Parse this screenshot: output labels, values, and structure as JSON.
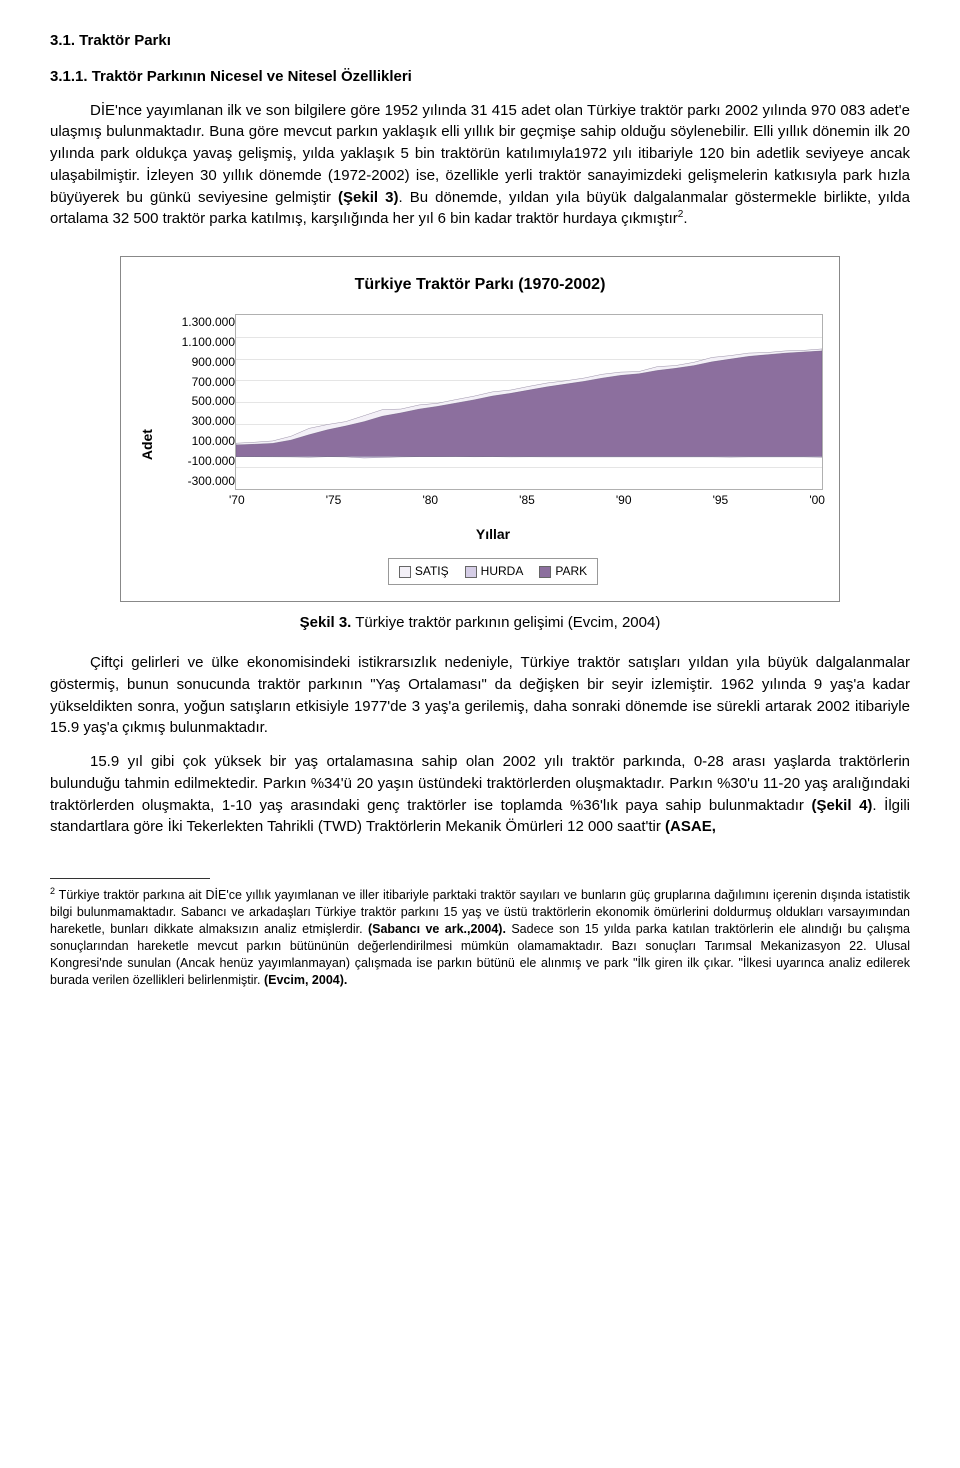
{
  "section_heading": "3.1. Traktör Parkı",
  "subsection_heading": "3.1.1. Traktör Parkının Nicesel ve Nitesel Özellikleri",
  "para1_a": "DİE'nce yayımlanan ilk ve son bilgilere göre 1952 yılında 31 415 adet olan Türkiye traktör parkı 2002 yılında 970 083 adet'e ulaşmış bulunmaktadır. Buna göre mevcut parkın yaklaşık elli yıllık bir geçmişe sahip olduğu söylenebilir. Elli yıllık dönemin ilk 20 yılında park oldukça yavaş gelişmiş, yılda yaklaşık 5 bin traktörün katılımıyla1972 yılı itibariyle 120 bin adetlik seviyeye ancak ulaşabilmiştir. İzleyen 30 yıllık dönemde (1972-2002) ise, özellikle yerli traktör sanayimizdeki gelişmelerin katkısıyla park hızla büyüyerek bu günkü seviyesine gelmiştir ",
  "para1_ref": "(Şekil 3)",
  "para1_b": ". Bu dönemde, yıldan yıla büyük dalgalanmalar göstermekle birlikte, yılda ortalama 32 500 traktör parka katılmış, karşılığında her yıl 6 bin kadar traktör hurdaya çıkmıştır",
  "para1_fnmark": "2",
  "para1_c": ".",
  "chart": {
    "title": "Türkiye Traktör Parkı (1970-2002)",
    "ylabel": "Adet",
    "xlabel": "Yıllar",
    "yticks": [
      "1.300.000",
      "1.100.000",
      "900.000",
      "700.000",
      "500.000",
      "300.000",
      "100.000",
      "-100.000",
      "-300.000"
    ],
    "xticks": [
      "'70",
      "'75",
      "'80",
      "'85",
      "'90",
      "'95",
      "'00"
    ],
    "legend": [
      {
        "label": "SATIŞ",
        "color": "#f3f0f7"
      },
      {
        "label": "HURDA",
        "color": "#d5cde6"
      },
      {
        "label": "PARK",
        "color": "#8c6f9e"
      }
    ],
    "colors": {
      "satis": "#f3f0f7",
      "hurda": "#d5cde6",
      "park": "#8c6f9e",
      "stroke": "#5d4d70",
      "bg": "#ffffff",
      "grid": "#e5e5e5"
    },
    "ylim_min": -300000,
    "ylim_max": 1300000,
    "years": [
      1970,
      1971,
      1972,
      1973,
      1974,
      1975,
      1976,
      1977,
      1978,
      1979,
      1980,
      1981,
      1982,
      1983,
      1984,
      1985,
      1986,
      1987,
      1988,
      1989,
      1990,
      1991,
      1992,
      1993,
      1994,
      1995,
      1996,
      1997,
      1998,
      1999,
      2000,
      2001,
      2002
    ],
    "park": [
      106000,
      112000,
      120000,
      150000,
      200000,
      245000,
      280000,
      320000,
      370000,
      400000,
      435000,
      460000,
      490000,
      520000,
      555000,
      580000,
      610000,
      640000,
      665000,
      690000,
      720000,
      745000,
      760000,
      790000,
      810000,
      835000,
      870000,
      895000,
      920000,
      935000,
      950000,
      960000,
      970083
    ],
    "satis": [
      15000,
      18000,
      22000,
      35000,
      58000,
      48000,
      40000,
      55000,
      60000,
      35000,
      38000,
      28000,
      32000,
      34000,
      38000,
      30000,
      34000,
      35000,
      30000,
      30000,
      35000,
      30000,
      20000,
      35000,
      25000,
      30000,
      40000,
      32000,
      30000,
      20000,
      20000,
      15000,
      18000
    ],
    "hurda": [
      -3000,
      -3500,
      -4000,
      -5000,
      -8000,
      -3000,
      -5000,
      -15000,
      -10000,
      -5000,
      -3000,
      -3000,
      -2000,
      -4000,
      -3000,
      -5000,
      -4000,
      -5000,
      -5000,
      -5000,
      -5000,
      -5000,
      -5000,
      -5000,
      -5000,
      -5000,
      -5000,
      -7000,
      -5000,
      -5000,
      -5000,
      -5000,
      -8000
    ]
  },
  "caption_strong": "Şekil 3.",
  "caption_rest": " Türkiye traktör parkının gelişimi  (Evcim, 2004)",
  "para2": "Çiftçi gelirleri ve ülke ekonomisindeki istikrarsızlık nedeniyle, Türkiye traktör satışları yıldan yıla büyük dalgalanmalar göstermiş, bunun sonucunda traktör parkının \"Yaş Ortalaması\" da değişken bir seyir izlemiştir. 1962 yılında 9 yaş'a kadar yükseldikten sonra, yoğun satışların etkisiyle 1977'de 3 yaş'a gerilemiş, daha sonraki dönemde ise sürekli artarak 2002 itibariyle 15.9 yaş'a çıkmış bulunmaktadır.",
  "para3_a": "15.9 yıl gibi çok yüksek bir yaş ortalamasına sahip olan 2002 yılı traktör parkında, 0-28 arası yaşlarda traktörlerin bulunduğu tahmin edilmektedir. Parkın %34'ü 20 yaşın üstündeki traktörlerden oluşmaktadır. Parkın %30'u 11-20 yaş aralığındaki traktörlerden oluşmakta, 1-10 yaş arasındaki genç traktörler ise toplamda %36'lık paya sahip bulunmaktadır ",
  "para3_ref": "(Şekil 4)",
  "para3_b": ". İlgili standartlara göre İki Tekerlekten Tahrikli (TWD) Traktörlerin Mekanik Ömürleri 12 000 saat'tir ",
  "para3_ref2": "(ASAE,",
  "footnote_mark": "2",
  "footnote_a": " Türkiye traktör parkına ait DİE'ce yıllık  yayımlanan ve iller itibariyle parktaki traktör sayıları ve bunların güç gruplarına  dağılımını içerenin dışında istatistik bilgi bulunmamaktadır. Sabancı ve arkadaşları Türkiye traktör parkını 15 yaş ve üstü traktörlerin ekonomik ömürlerini doldurmuş oldukları varsayımından hareketle, bunları dikkate almaksızın analiz etmişlerdir. ",
  "footnote_ref1": "(Sabancı ve ark.,2004).",
  "footnote_b": " Sadece son 15 yılda parka katılan traktörlerin ele alındığı bu çalışma sonuçlarından hareketle mevcut parkın bütününün değerlendirilmesi mümkün olamamaktadır. Bazı sonuçları Tarımsal Mekanizasyon 22. Ulusal Kongresi'nde sunulan (Ancak henüz yayımlanmayan) çalışmada ise parkın bütünü ele alınmış ve park \"İlk giren ilk çıkar. \"İlkesi uyarınca analiz edilerek burada verilen özellikleri belirlenmiştir. ",
  "footnote_ref2": "(Evcim, 2004)."
}
